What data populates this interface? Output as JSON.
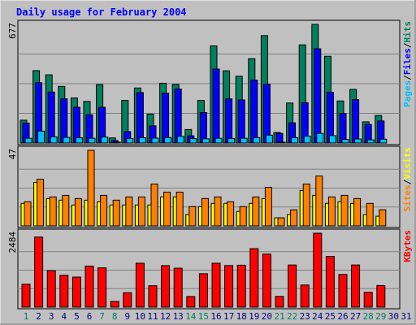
{
  "title": "Daily usage for February 2004",
  "colors": {
    "background": "#c0c0c0",
    "title": "#0000ff",
    "hits": "#00805c",
    "files": "#0000ff",
    "pages": "#00c0ff",
    "visits": "#ffff00",
    "sites": "#ff8000",
    "kbytes": "#ff0000",
    "weekend_day": "#00805c",
    "weekday": "#000080"
  },
  "chart_data": [
    {
      "type": "bar",
      "name": "hits-files-pages",
      "ylabel_parts": [
        "Pages",
        "Files",
        "Hits"
      ],
      "ymax_label": "677",
      "ylim": [
        0,
        677
      ],
      "x": [
        1,
        2,
        3,
        4,
        5,
        6,
        7,
        8,
        9,
        10,
        11,
        12,
        13,
        14,
        15,
        16,
        17,
        18,
        19,
        20,
        21,
        22,
        23,
        24,
        25,
        26,
        27,
        28,
        29,
        30,
        31
      ],
      "series": [
        {
          "name": "Hits",
          "values": [
            130,
            413,
            389,
            323,
            257,
            237,
            333,
            29,
            243,
            314,
            165,
            341,
            334,
            77,
            243,
            554,
            412,
            381,
            481,
            613,
            60,
            228,
            560,
            677,
            495,
            240,
            306,
            121,
            157,
            0,
            0
          ]
        },
        {
          "name": "Files",
          "values": [
            114,
            344,
            291,
            252,
            204,
            161,
            204,
            14,
            65,
            288,
            98,
            284,
            308,
            41,
            174,
            422,
            252,
            246,
            359,
            335,
            55,
            115,
            230,
            538,
            290,
            168,
            248,
            106,
            126,
            0,
            0
          ]
        },
        {
          "name": "Pages",
          "values": [
            27,
            68,
            35,
            32,
            30,
            27,
            34,
            5,
            26,
            30,
            28,
            31,
            38,
            25,
            24,
            27,
            26,
            27,
            31,
            45,
            5,
            31,
            39,
            55,
            42,
            20,
            23,
            18,
            22,
            0,
            0
          ]
        }
      ]
    },
    {
      "type": "bar",
      "name": "visits-sites",
      "ylabel_parts": [
        "Sites",
        "Visits"
      ],
      "ymax_label": "47",
      "ylim": [
        0,
        47
      ],
      "x": [
        1,
        2,
        3,
        4,
        5,
        6,
        7,
        8,
        9,
        10,
        11,
        12,
        13,
        14,
        15,
        16,
        17,
        18,
        19,
        20,
        21,
        22,
        23,
        24,
        25,
        26,
        27,
        28,
        29,
        30,
        31
      ],
      "series": [
        {
          "name": "Visits",
          "values": [
            14,
            27,
            17,
            16,
            13,
            16,
            15,
            13,
            13,
            13,
            13,
            18,
            18,
            7,
            12,
            14,
            14,
            9,
            14,
            17,
            5,
            7,
            22,
            19,
            14,
            15,
            14,
            7,
            6,
            0,
            0
          ]
        },
        {
          "name": "Sites",
          "values": [
            15,
            29,
            18,
            19,
            17,
            47,
            19,
            16,
            18,
            18,
            26,
            21,
            21,
            12,
            17,
            18,
            15,
            12,
            18,
            24,
            5,
            10,
            26,
            31,
            18,
            19,
            17,
            14,
            10,
            0,
            0
          ]
        }
      ]
    },
    {
      "type": "bar",
      "name": "kbytes",
      "ylabel_parts": [
        "KBytes"
      ],
      "ymax_label": "2484",
      "ylim": [
        0,
        2484
      ],
      "x": [
        1,
        2,
        3,
        4,
        5,
        6,
        7,
        8,
        9,
        10,
        11,
        12,
        13,
        14,
        15,
        16,
        17,
        18,
        19,
        20,
        21,
        22,
        23,
        24,
        25,
        26,
        27,
        28,
        29,
        30,
        31
      ],
      "series": [
        {
          "name": "KBytes",
          "values": [
            768,
            2354,
            1223,
            1069,
            1010,
            1379,
            1320,
            191,
            484,
            1475,
            719,
            1395,
            1308,
            356,
            1123,
            1475,
            1396,
            1409,
            1965,
            1781,
            360,
            1416,
            743,
            2484,
            1704,
            1098,
            1416,
            497,
            726,
            0,
            0
          ]
        }
      ]
    }
  ],
  "days": [
    {
      "label": "1",
      "weekend": true
    },
    {
      "label": "2",
      "weekend": false
    },
    {
      "label": "3",
      "weekend": false
    },
    {
      "label": "4",
      "weekend": false
    },
    {
      "label": "5",
      "weekend": false
    },
    {
      "label": "6",
      "weekend": false
    },
    {
      "label": "7",
      "weekend": true
    },
    {
      "label": "8",
      "weekend": true
    },
    {
      "label": "9",
      "weekend": false
    },
    {
      "label": "10",
      "weekend": false
    },
    {
      "label": "11",
      "weekend": false
    },
    {
      "label": "12",
      "weekend": false
    },
    {
      "label": "13",
      "weekend": false
    },
    {
      "label": "14",
      "weekend": true
    },
    {
      "label": "15",
      "weekend": true
    },
    {
      "label": "16",
      "weekend": false
    },
    {
      "label": "17",
      "weekend": false
    },
    {
      "label": "18",
      "weekend": false
    },
    {
      "label": "19",
      "weekend": false
    },
    {
      "label": "20",
      "weekend": false
    },
    {
      "label": "21",
      "weekend": true
    },
    {
      "label": "22",
      "weekend": true
    },
    {
      "label": "23",
      "weekend": false
    },
    {
      "label": "24",
      "weekend": false
    },
    {
      "label": "25",
      "weekend": false
    },
    {
      "label": "26",
      "weekend": false
    },
    {
      "label": "27",
      "weekend": false
    },
    {
      "label": "28",
      "weekend": true
    },
    {
      "label": "29",
      "weekend": true
    },
    {
      "label": "30",
      "weekend": false
    },
    {
      "label": "31",
      "weekend": false
    }
  ]
}
